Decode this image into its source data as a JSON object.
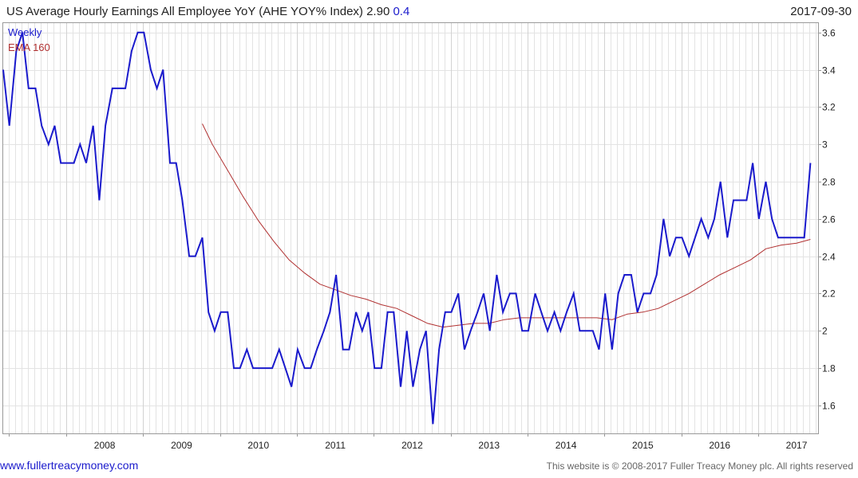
{
  "header": {
    "title": "US Average Hourly Earnings All Employee YoY (AHE YOY% Index)",
    "last_value": "2.90",
    "change": "0.4",
    "date": "2017-09-30"
  },
  "footer": {
    "site": "www.fullertreacymoney.com",
    "copyright": "This website is © 2008-2017 Fuller Treacy Money plc. All rights reserved"
  },
  "colors": {
    "main_series": "#1a1acc",
    "ema_series": "#b03030",
    "grid": "#e3e3e3",
    "change_text": "#1a1acc"
  },
  "chart_data": {
    "type": "line",
    "ylim": [
      1.45,
      3.65
    ],
    "y_ticks": [
      1.6,
      1.8,
      2,
      2.2,
      2.4,
      2.6,
      2.8,
      3,
      3.2,
      3.4,
      3.6
    ],
    "y_tick_labels": [
      "1.6",
      "1.8",
      "2",
      "2.2",
      "2.4",
      "2.6",
      "2.8",
      "3",
      "3.2",
      "3.4",
      "3.6"
    ],
    "xlim": [
      2007.18,
      2017.78
    ],
    "x_ticks": [
      2008,
      2009,
      2010,
      2011,
      2012,
      2013,
      2014,
      2015,
      2016,
      2017
    ],
    "x_tick_labels": [
      "2008",
      "2009",
      "2010",
      "2011",
      "2012",
      "2013",
      "2014",
      "2015",
      "2016",
      "2017"
    ],
    "grid": true,
    "legend_position": "top-left",
    "series": [
      {
        "name": "Weekly",
        "x": [
          2007.18,
          2007.26,
          2007.35,
          2007.43,
          2007.51,
          2007.6,
          2007.68,
          2007.77,
          2007.85,
          2007.93,
          2008.01,
          2008.1,
          2008.18,
          2008.26,
          2008.35,
          2008.43,
          2008.51,
          2008.6,
          2008.68,
          2008.77,
          2008.85,
          2008.93,
          2009.01,
          2009.1,
          2009.18,
          2009.26,
          2009.35,
          2009.43,
          2009.51,
          2009.6,
          2009.68,
          2009.77,
          2009.85,
          2009.93,
          2010.01,
          2010.1,
          2010.18,
          2010.26,
          2010.35,
          2010.43,
          2010.51,
          2010.6,
          2010.68,
          2010.77,
          2010.85,
          2010.93,
          2011.01,
          2011.1,
          2011.18,
          2011.26,
          2011.35,
          2011.43,
          2011.51,
          2011.6,
          2011.68,
          2011.77,
          2011.85,
          2011.93,
          2012.01,
          2012.1,
          2012.18,
          2012.26,
          2012.35,
          2012.43,
          2012.51,
          2012.6,
          2012.68,
          2012.77,
          2012.85,
          2012.93,
          2013.01,
          2013.1,
          2013.18,
          2013.26,
          2013.35,
          2013.43,
          2013.51,
          2013.6,
          2013.68,
          2013.77,
          2013.85,
          2013.93,
          2014.01,
          2014.1,
          2014.18,
          2014.26,
          2014.35,
          2014.43,
          2014.51,
          2014.6,
          2014.68,
          2014.77,
          2014.85,
          2014.93,
          2015.01,
          2015.1,
          2015.18,
          2015.26,
          2015.35,
          2015.43,
          2015.51,
          2015.6,
          2015.68,
          2015.77,
          2015.85,
          2015.93,
          2016.01,
          2016.1,
          2016.18,
          2016.26,
          2016.35,
          2016.43,
          2016.51,
          2016.6,
          2016.68,
          2016.77,
          2016.85,
          2016.93,
          2017.01,
          2017.1,
          2017.18,
          2017.26,
          2017.35,
          2017.43,
          2017.51,
          2017.6,
          2017.68
        ],
        "values": [
          3.4,
          3.1,
          3.5,
          3.6,
          3.3,
          3.3,
          3.1,
          3.0,
          3.1,
          2.9,
          2.9,
          2.9,
          3.0,
          2.9,
          3.1,
          2.7,
          3.1,
          3.3,
          3.3,
          3.3,
          3.5,
          3.6,
          3.6,
          3.4,
          3.3,
          3.4,
          2.9,
          2.9,
          2.7,
          2.4,
          2.4,
          2.5,
          2.1,
          2.0,
          2.1,
          2.1,
          1.8,
          1.8,
          1.9,
          1.8,
          1.8,
          1.8,
          1.8,
          1.9,
          1.8,
          1.7,
          1.9,
          1.8,
          1.8,
          1.9,
          2.0,
          2.1,
          2.3,
          1.9,
          1.9,
          2.1,
          2.0,
          2.1,
          1.8,
          1.8,
          2.1,
          2.1,
          1.7,
          2.0,
          1.7,
          1.9,
          2.0,
          1.5,
          1.9,
          2.1,
          2.1,
          2.2,
          1.9,
          2.0,
          2.1,
          2.2,
          2.0,
          2.3,
          2.1,
          2.2,
          2.2,
          2.0,
          2.0,
          2.2,
          2.1,
          2.0,
          2.1,
          2.0,
          2.1,
          2.2,
          2.0,
          2.0,
          2.0,
          1.9,
          2.2,
          1.9,
          2.2,
          2.3,
          2.3,
          2.1,
          2.2,
          2.2,
          2.3,
          2.6,
          2.4,
          2.5,
          2.5,
          2.4,
          2.5,
          2.6,
          2.5,
          2.6,
          2.8,
          2.5,
          2.7,
          2.7,
          2.7,
          2.9,
          2.6,
          2.8,
          2.6,
          2.5,
          2.5,
          2.5,
          2.5,
          2.5,
          2.9
        ]
      },
      {
        "name": "EMA 160",
        "x": [
          2009.77,
          2009.9,
          2010.1,
          2010.3,
          2010.5,
          2010.7,
          2010.9,
          2011.1,
          2011.3,
          2011.5,
          2011.7,
          2011.9,
          2012.1,
          2012.3,
          2012.5,
          2012.7,
          2012.9,
          2013.1,
          2013.3,
          2013.5,
          2013.7,
          2013.9,
          2014.1,
          2014.3,
          2014.5,
          2014.7,
          2014.9,
          2015.1,
          2015.3,
          2015.5,
          2015.7,
          2015.9,
          2016.1,
          2016.3,
          2016.5,
          2016.7,
          2016.9,
          2017.1,
          2017.3,
          2017.5,
          2017.68
        ],
        "values": [
          3.11,
          3.0,
          2.86,
          2.72,
          2.59,
          2.48,
          2.38,
          2.31,
          2.25,
          2.22,
          2.19,
          2.17,
          2.14,
          2.12,
          2.08,
          2.04,
          2.02,
          2.03,
          2.04,
          2.04,
          2.06,
          2.07,
          2.07,
          2.07,
          2.07,
          2.07,
          2.07,
          2.06,
          2.09,
          2.1,
          2.12,
          2.16,
          2.2,
          2.25,
          2.3,
          2.34,
          2.38,
          2.44,
          2.46,
          2.47,
          2.49
        ]
      }
    ]
  }
}
